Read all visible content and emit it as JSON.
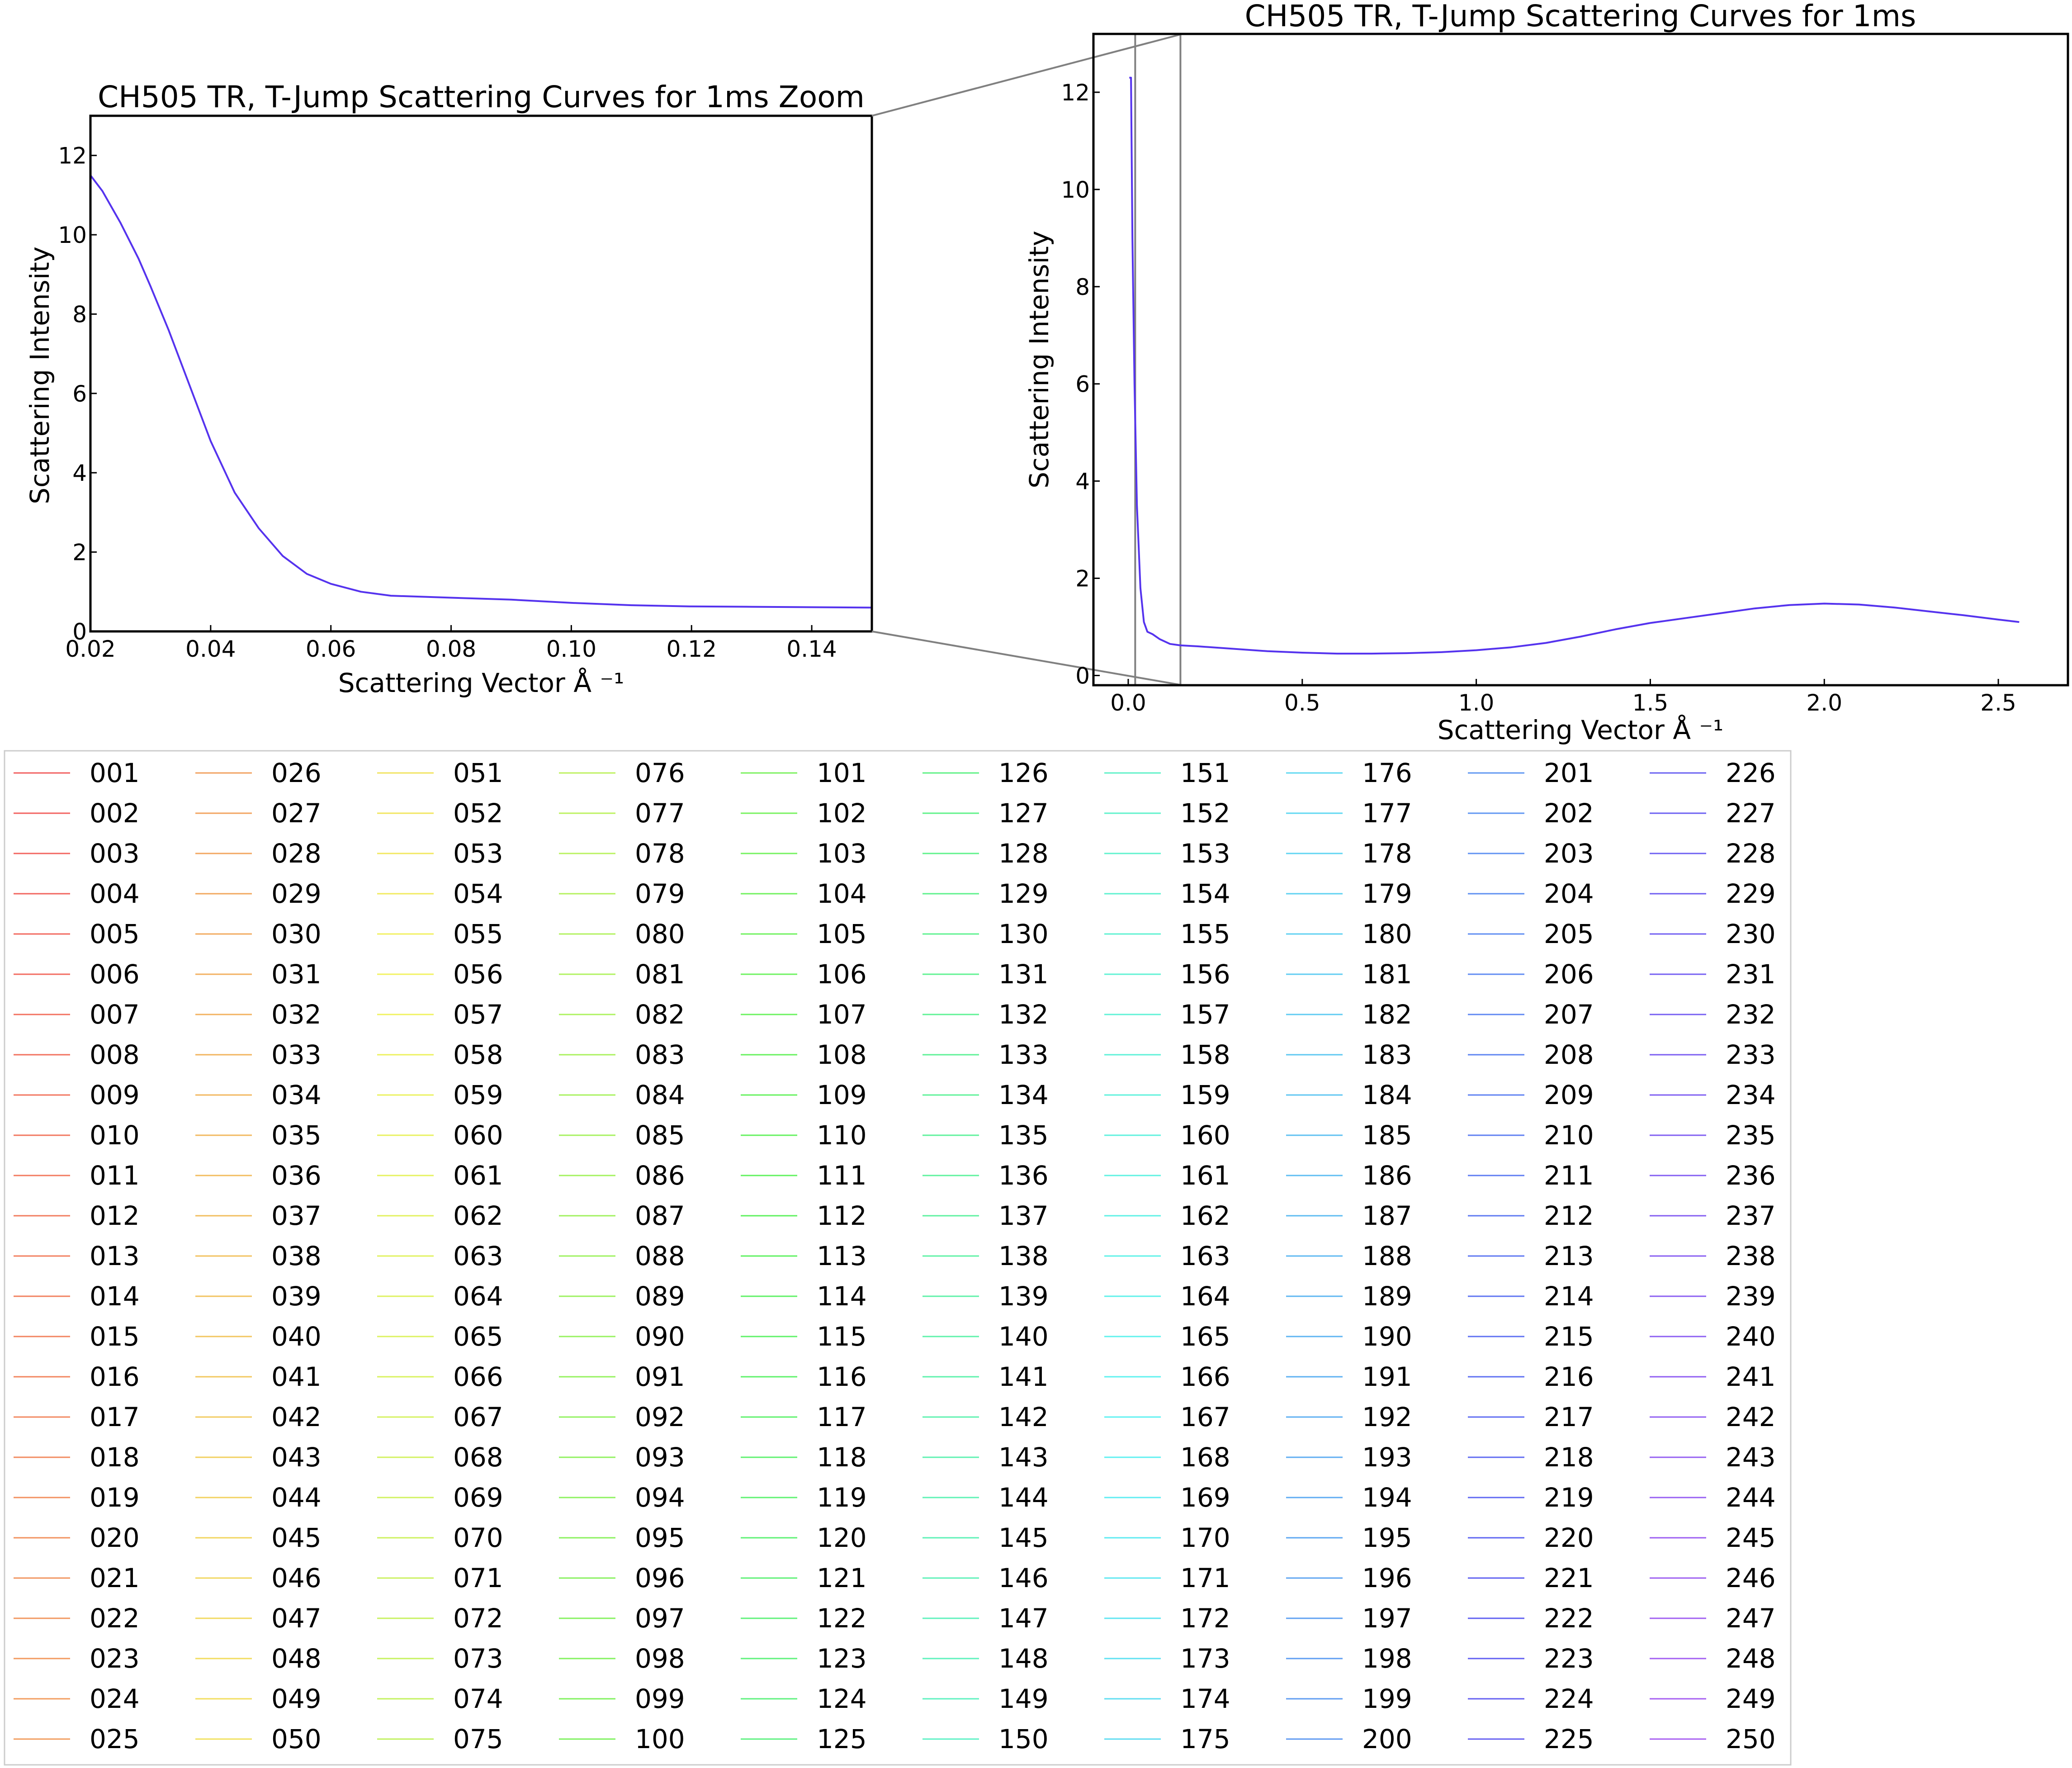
{
  "chart_data": [
    {
      "type": "line",
      "title": "CH505 TR, T-Jump Scattering Curves for 1ms Zoom",
      "xlabel": "Scattering Vector Å ⁻¹",
      "ylabel": "Scattering Intensity",
      "xlim": [
        0.02,
        0.15
      ],
      "ylim": [
        0,
        13
      ],
      "xticks": [
        0.02,
        0.04,
        0.06,
        0.08,
        0.1,
        0.12,
        0.14
      ],
      "xtick_labels": [
        "0.02",
        "0.04",
        "0.06",
        "0.08",
        "0.10",
        "0.12",
        "0.14"
      ],
      "yticks": [
        0,
        2,
        4,
        6,
        8,
        10,
        12
      ],
      "ytick_labels": [
        "0",
        "2",
        "4",
        "6",
        "8",
        "10",
        "12"
      ],
      "grid": false,
      "curve": {
        "x": [
          0.02,
          0.022,
          0.025,
          0.028,
          0.03,
          0.033,
          0.036,
          0.04,
          0.044,
          0.048,
          0.052,
          0.056,
          0.06,
          0.065,
          0.07,
          0.08,
          0.09,
          0.1,
          0.11,
          0.12,
          0.13,
          0.14,
          0.15
        ],
        "y": [
          11.5,
          11.1,
          10.3,
          9.4,
          8.7,
          7.6,
          6.4,
          4.8,
          3.5,
          2.6,
          1.9,
          1.45,
          1.2,
          1.0,
          0.9,
          0.85,
          0.8,
          0.72,
          0.66,
          0.63,
          0.62,
          0.61,
          0.6
        ]
      }
    },
    {
      "type": "line",
      "title": "CH505 TR, T-Jump Scattering Curves for 1ms",
      "xlabel": "Scattering Vector Å ⁻¹",
      "ylabel": "Scattering Intensity",
      "xlim": [
        -0.1,
        2.7
      ],
      "ylim": [
        -0.2,
        13.2
      ],
      "xticks": [
        0.0,
        0.5,
        1.0,
        1.5,
        2.0,
        2.5
      ],
      "xtick_labels": [
        "0.0",
        "0.5",
        "1.0",
        "1.5",
        "2.0",
        "2.5"
      ],
      "yticks": [
        0,
        2,
        4,
        6,
        8,
        10,
        12
      ],
      "ytick_labels": [
        "0",
        "2",
        "4",
        "6",
        "8",
        "10",
        "12"
      ],
      "grid": false,
      "zoom_region": [
        0.02,
        0.15
      ],
      "curve": {
        "x": [
          0.003,
          0.008,
          0.012,
          0.018,
          0.025,
          0.035,
          0.045,
          0.055,
          0.07,
          0.09,
          0.12,
          0.15,
          0.2,
          0.3,
          0.4,
          0.5,
          0.6,
          0.7,
          0.8,
          0.9,
          1.0,
          1.1,
          1.2,
          1.3,
          1.4,
          1.5,
          1.6,
          1.7,
          1.8,
          1.9,
          2.0,
          2.1,
          2.2,
          2.3,
          2.4,
          2.5,
          2.56
        ],
        "y": [
          12.3,
          12.3,
          9.0,
          6.0,
          3.5,
          1.8,
          1.1,
          0.9,
          0.85,
          0.75,
          0.65,
          0.62,
          0.6,
          0.55,
          0.5,
          0.47,
          0.45,
          0.45,
          0.46,
          0.48,
          0.52,
          0.58,
          0.67,
          0.8,
          0.95,
          1.08,
          1.18,
          1.28,
          1.38,
          1.45,
          1.48,
          1.46,
          1.4,
          1.32,
          1.24,
          1.15,
          1.1
        ]
      }
    }
  ],
  "legend": {
    "placement": "bottom-left",
    "columns": 10,
    "rows": 25,
    "entries": [
      "001",
      "002",
      "003",
      "004",
      "005",
      "006",
      "007",
      "008",
      "009",
      "010",
      "011",
      "012",
      "013",
      "014",
      "015",
      "016",
      "017",
      "018",
      "019",
      "020",
      "021",
      "022",
      "023",
      "024",
      "025",
      "026",
      "027",
      "028",
      "029",
      "030",
      "031",
      "032",
      "033",
      "034",
      "035",
      "036",
      "037",
      "038",
      "039",
      "040",
      "041",
      "042",
      "043",
      "044",
      "045",
      "046",
      "047",
      "048",
      "049",
      "050",
      "051",
      "052",
      "053",
      "054",
      "055",
      "056",
      "057",
      "058",
      "059",
      "060",
      "061",
      "062",
      "063",
      "064",
      "065",
      "066",
      "067",
      "068",
      "069",
      "070",
      "071",
      "072",
      "073",
      "074",
      "075",
      "076",
      "077",
      "078",
      "079",
      "080",
      "081",
      "082",
      "083",
      "084",
      "085",
      "086",
      "087",
      "088",
      "089",
      "090",
      "091",
      "092",
      "093",
      "094",
      "095",
      "096",
      "097",
      "098",
      "099",
      "100",
      "101",
      "102",
      "103",
      "104",
      "105",
      "106",
      "107",
      "108",
      "109",
      "110",
      "111",
      "112",
      "113",
      "114",
      "115",
      "116",
      "117",
      "118",
      "119",
      "120",
      "121",
      "122",
      "123",
      "124",
      "125",
      "126",
      "127",
      "128",
      "129",
      "130",
      "131",
      "132",
      "133",
      "134",
      "135",
      "136",
      "137",
      "138",
      "139",
      "140",
      "141",
      "142",
      "143",
      "144",
      "145",
      "146",
      "147",
      "148",
      "149",
      "150",
      "151",
      "152",
      "153",
      "154",
      "155",
      "156",
      "157",
      "158",
      "159",
      "160",
      "161",
      "162",
      "163",
      "164",
      "165",
      "166",
      "167",
      "168",
      "169",
      "170",
      "171",
      "172",
      "173",
      "174",
      "175",
      "176",
      "177",
      "178",
      "179",
      "180",
      "181",
      "182",
      "183",
      "184",
      "185",
      "186",
      "187",
      "188",
      "189",
      "190",
      "191",
      "192",
      "193",
      "194",
      "195",
      "196",
      "197",
      "198",
      "199",
      "200",
      "201",
      "202",
      "203",
      "204",
      "205",
      "206",
      "207",
      "208",
      "209",
      "210",
      "211",
      "212",
      "213",
      "214",
      "215",
      "216",
      "217",
      "218",
      "219",
      "220",
      "221",
      "222",
      "223",
      "224",
      "225",
      "226",
      "227",
      "228",
      "229",
      "230",
      "231",
      "232",
      "233",
      "234",
      "235",
      "236",
      "237",
      "238",
      "239",
      "240",
      "241",
      "242",
      "243",
      "244",
      "245",
      "246",
      "247",
      "248",
      "249",
      "250"
    ],
    "colormap": "rainbow (red → orange → yellow → green → cyan → blue → violet)"
  },
  "colors": {
    "visible_curve": "#5533ee",
    "zoom_connector": "#808080"
  }
}
